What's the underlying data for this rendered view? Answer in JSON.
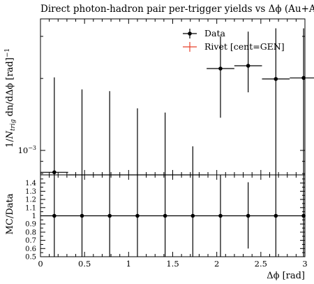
{
  "chart_data": {
    "type": "scatter",
    "title": "Direct photon-hadron pair per-trigger yields vs Δϕ (Au+Au and p",
    "xlabel": "Δϕ [rad]",
    "ylabel": "1/N_{trig} dn/dΔϕ [rad]^{-1}",
    "ylabel_parts": {
      "a": "1/",
      "b": "N",
      "c": "trig",
      "d": " dn/dΔϕ [rad]",
      "e": "−1"
    },
    "xlim": [
      0,
      3
    ],
    "ylim": [
      0.00079,
      0.00355
    ],
    "yscale": "log",
    "ytick_labels": [
      {
        "base": "10",
        "exp": "−3"
      }
    ],
    "xtick_labels": [
      "0",
      "0.5",
      "1",
      "1.5",
      "2",
      "2.5",
      "3"
    ],
    "xticks": [
      0,
      0.5,
      1,
      1.5,
      2,
      2.5,
      3
    ],
    "legend": {
      "position": "top-right",
      "entries": [
        "Data",
        "Rivet [cent=GEN]"
      ]
    },
    "series": [
      {
        "name": "Data",
        "color": "#000000",
        "points": [
          {
            "x": 0.157,
            "xerr": 0.157,
            "y": 0.00081,
            "ylow": 0.00079,
            "yhigh": 0.00202
          },
          {
            "x": 0.471,
            "xerr": 0.157,
            "y": 0.00079,
            "ylow": 0.00079,
            "yhigh": 0.0018
          },
          {
            "x": 0.785,
            "xerr": 0.157,
            "y": 0.00079,
            "ylow": 0.00079,
            "yhigh": 0.00177
          },
          {
            "x": 1.1,
            "xerr": 0.157,
            "y": 0.00079,
            "ylow": 0.00079,
            "yhigh": 0.0015
          },
          {
            "x": 1.414,
            "xerr": 0.157,
            "y": 0.00079,
            "ylow": 0.00079,
            "yhigh": 0.00144
          },
          {
            "x": 1.728,
            "xerr": 0.157,
            "y": 0.00079,
            "ylow": 0.00079,
            "yhigh": 0.00104
          },
          {
            "x": 2.042,
            "xerr": 0.157,
            "y": 0.0022,
            "ylow": 0.00137,
            "yhigh": 0.003
          },
          {
            "x": 2.356,
            "xerr": 0.157,
            "y": 0.00226,
            "ylow": 0.00175,
            "yhigh": 0.00314
          },
          {
            "x": 2.67,
            "xerr": 0.157,
            "y": 0.00199,
            "ylow": 0.00079,
            "yhigh": 0.00324
          },
          {
            "x": 2.985,
            "xerr": 0.157,
            "y": 0.00201,
            "ylow": 0.00079,
            "yhigh": 0.00324
          }
        ]
      },
      {
        "name": "Rivet [cent=GEN]",
        "color": "#e8412b",
        "points": []
      }
    ],
    "ratio": {
      "ylabel": "MC/Data",
      "ylim": [
        0.5,
        1.5
      ],
      "ytick_labels": [
        "0.5",
        "0.6",
        "0.7",
        "0.8",
        "0.9",
        "1",
        "1.1",
        "1.2",
        "1.3",
        "1.4"
      ],
      "yticks": [
        0.5,
        0.6,
        0.7,
        0.8,
        0.9,
        1.0,
        1.1,
        1.2,
        1.3,
        1.4
      ],
      "points": [
        {
          "x": 0.157,
          "y": 1.0,
          "ylow": 0.5,
          "yhigh": 1.5
        },
        {
          "x": 0.471,
          "y": 1.0,
          "ylow": 0.5,
          "yhigh": 1.5
        },
        {
          "x": 0.785,
          "y": 1.0,
          "ylow": 0.5,
          "yhigh": 1.5
        },
        {
          "x": 1.1,
          "y": 1.0,
          "ylow": 0.5,
          "yhigh": 1.5
        },
        {
          "x": 1.414,
          "y": 1.0,
          "ylow": 0.5,
          "yhigh": 1.5
        },
        {
          "x": 1.728,
          "y": 1.0,
          "ylow": 0.5,
          "yhigh": 1.5
        },
        {
          "x": 2.042,
          "y": 1.0,
          "ylow": 0.5,
          "yhigh": 1.5
        },
        {
          "x": 2.356,
          "y": 1.0,
          "ylow": 0.6,
          "yhigh": 1.41
        },
        {
          "x": 2.67,
          "y": 1.0,
          "ylow": 0.5,
          "yhigh": 1.5
        },
        {
          "x": 2.985,
          "y": 1.0,
          "ylow": 0.5,
          "yhigh": 1.5
        }
      ]
    }
  }
}
